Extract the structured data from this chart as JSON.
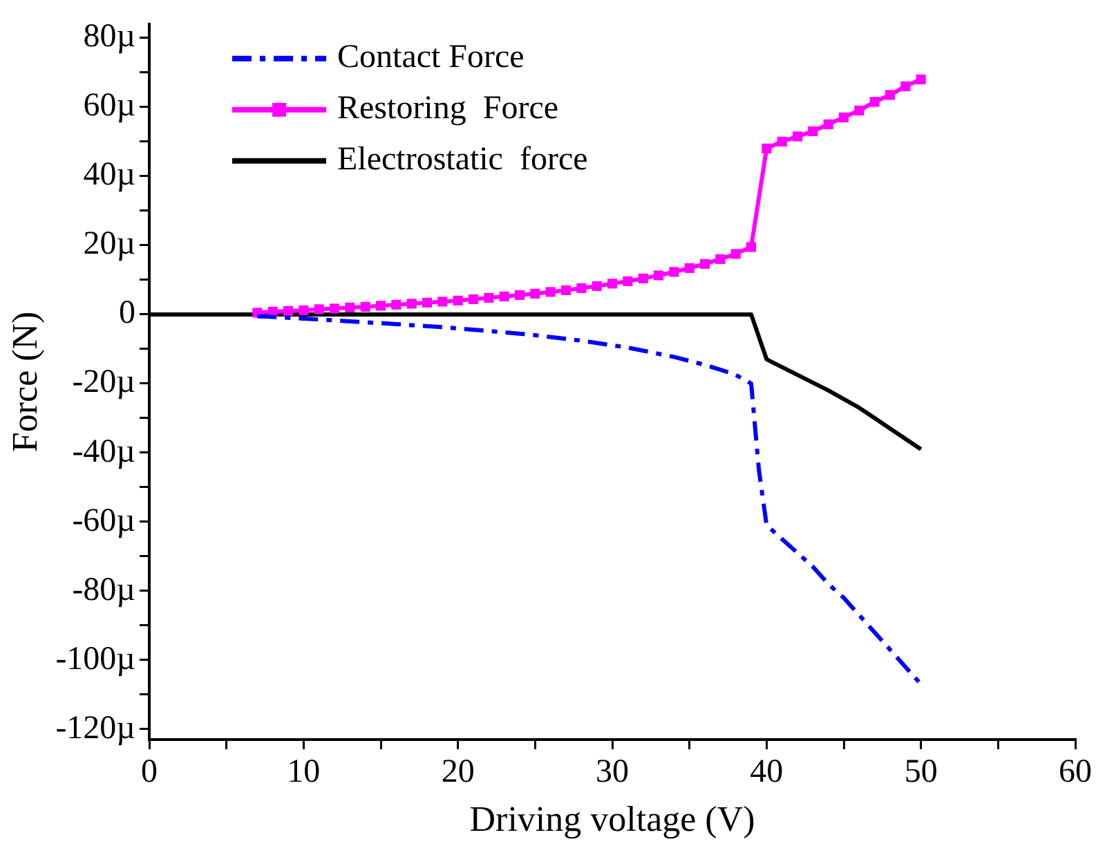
{
  "chart_data": {
    "type": "line",
    "xlabel": "Driving voltage (V)",
    "ylabel": "Force (N)",
    "xlim": [
      0,
      60
    ],
    "xticks": [
      0,
      {
        "value": 5,
        "label": null
      },
      10,
      {
        "value": 15,
        "label": null
      },
      20,
      {
        "value": 25,
        "label": null
      },
      30,
      {
        "value": 35,
        "label": null
      },
      40,
      {
        "value": 45,
        "label": null
      },
      50,
      {
        "value": 55,
        "label": null
      },
      60
    ],
    "ylim": [
      -123,
      84
    ],
    "yticks": [
      {
        "value": -120,
        "label": "-120µ"
      },
      {
        "value": -110,
        "label": null
      },
      {
        "value": -100,
        "label": "-100µ"
      },
      {
        "value": -90,
        "label": null
      },
      {
        "value": -80,
        "label": "-80µ"
      },
      {
        "value": -70,
        "label": null
      },
      {
        "value": -60,
        "label": "-60µ"
      },
      {
        "value": -50,
        "label": null
      },
      {
        "value": -40,
        "label": "-40µ"
      },
      {
        "value": -30,
        "label": null
      },
      {
        "value": -20,
        "label": "-20µ"
      },
      {
        "value": -10,
        "label": null
      },
      0,
      {
        "value": 10,
        "label": null
      },
      {
        "value": 20,
        "label": "20µ"
      },
      {
        "value": 30,
        "label": null
      },
      {
        "value": 40,
        "label": "40µ"
      },
      {
        "value": 50,
        "label": null
      },
      {
        "value": 60,
        "label": "60µ"
      },
      {
        "value": 70,
        "label": null
      },
      {
        "value": 80,
        "label": "80µ"
      }
    ],
    "grid": false,
    "legend": "top left",
    "series": [
      {
        "name": "Contact Force",
        "color": "#0000ff",
        "line_style": "dashed",
        "marker": "none",
        "x": [
          7,
          10,
          13,
          16,
          19,
          22,
          25,
          28,
          31,
          34,
          36,
          37,
          38,
          39,
          39.5,
          40,
          41,
          42,
          43,
          44,
          45,
          46,
          47,
          48,
          49,
          50
        ],
        "values": [
          -0.5,
          -1.2,
          -2,
          -2.8,
          -3.7,
          -4.8,
          -6,
          -7.6,
          -9.6,
          -12.3,
          -14.6,
          -16,
          -17.5,
          -20,
          -45,
          -61,
          -65,
          -69,
          -73,
          -78,
          -82,
          -87,
          -92,
          -97,
          -102,
          -107
        ]
      },
      {
        "name": "Restoring  Force",
        "color": "#ff00ff",
        "line_style": "solid",
        "marker": "square",
        "x": [
          7,
          8,
          9,
          10,
          11,
          12,
          13,
          14,
          15,
          16,
          17,
          18,
          19,
          20,
          21,
          22,
          23,
          24,
          25,
          26,
          27,
          28,
          29,
          30,
          31,
          32,
          33,
          34,
          35,
          36,
          37,
          38,
          39,
          40,
          41,
          42,
          43,
          44,
          45,
          46,
          47,
          48,
          49,
          50
        ],
        "values": [
          0.5,
          0.8,
          1,
          1.2,
          1.5,
          1.7,
          2,
          2.2,
          2.5,
          2.8,
          3.1,
          3.4,
          3.7,
          4,
          4.4,
          4.8,
          5.2,
          5.6,
          6,
          6.5,
          7,
          7.6,
          8.2,
          8.9,
          9.6,
          10.4,
          11.3,
          12.3,
          13.4,
          14.6,
          16,
          17.5,
          19.5,
          48,
          50,
          51.5,
          53,
          55,
          57,
          59,
          61.5,
          63.5,
          66,
          68
        ]
      },
      {
        "name": "Electrostatic  force",
        "color": "#000000",
        "line_style": "solid",
        "marker": "none",
        "x": [
          0,
          39,
          40,
          42,
          44,
          46,
          48,
          50
        ],
        "values": [
          0,
          0,
          -13,
          -17.5,
          -22,
          -27,
          -33,
          -39
        ]
      }
    ]
  }
}
